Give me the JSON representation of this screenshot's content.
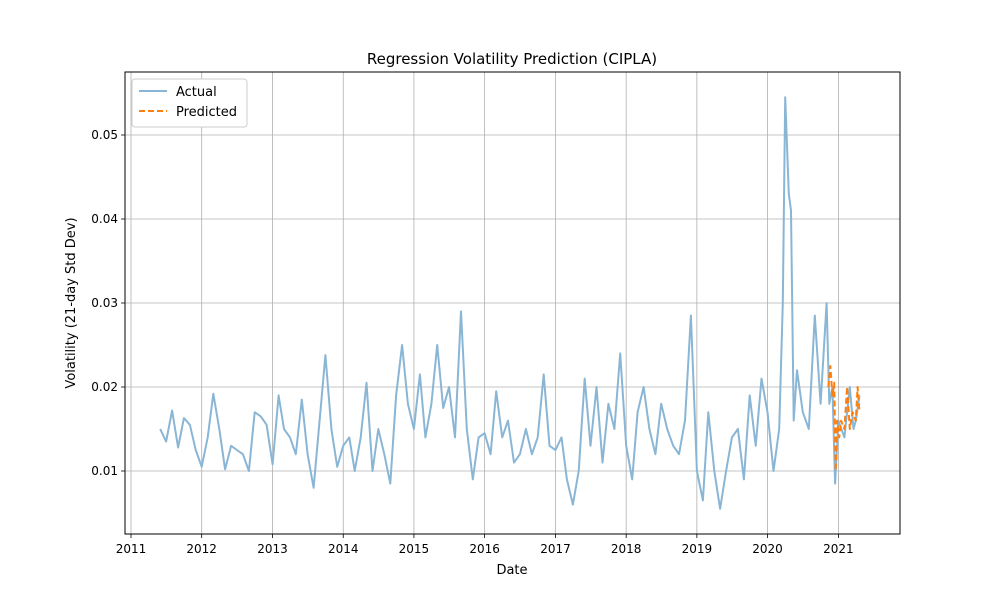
{
  "chart_data": {
    "type": "line",
    "title": "Regression Volatility Prediction (CIPLA)",
    "xlabel": "Date",
    "ylabel": "Volatility (21-day Std Dev)",
    "x_ticks": [
      "2011",
      "2012",
      "2013",
      "2014",
      "2015",
      "2016",
      "2017",
      "2018",
      "2019",
      "2020",
      "2021"
    ],
    "y_ticks": [
      "0.01",
      "0.02",
      "0.03",
      "0.04",
      "0.05"
    ],
    "xlim": [
      "2010-12-01",
      "2021-11-15"
    ],
    "ylim": [
      0.0025,
      0.0575
    ],
    "grid": true,
    "legend_position": "top-left",
    "colors": {
      "actual": "#8ab6d6",
      "predicted": "#ff7f0e"
    },
    "series": [
      {
        "name": "Actual",
        "style": "solid",
        "points": [
          [
            "2011-06-01",
            0.015
          ],
          [
            "2011-07-01",
            0.0135
          ],
          [
            "2011-08-01",
            0.0172
          ],
          [
            "2011-09-01",
            0.0128
          ],
          [
            "2011-10-01",
            0.0163
          ],
          [
            "2011-11-01",
            0.0155
          ],
          [
            "2011-12-01",
            0.0125
          ],
          [
            "2012-01-01",
            0.0105
          ],
          [
            "2012-02-01",
            0.014
          ],
          [
            "2012-03-01",
            0.0192
          ],
          [
            "2012-04-01",
            0.015
          ],
          [
            "2012-05-01",
            0.0102
          ],
          [
            "2012-06-01",
            0.013
          ],
          [
            "2012-07-01",
            0.0125
          ],
          [
            "2012-08-01",
            0.012
          ],
          [
            "2012-09-01",
            0.01
          ],
          [
            "2012-10-01",
            0.017
          ],
          [
            "2012-11-01",
            0.0165
          ],
          [
            "2012-12-01",
            0.0155
          ],
          [
            "2013-01-01",
            0.0108
          ],
          [
            "2013-02-01",
            0.019
          ],
          [
            "2013-03-01",
            0.015
          ],
          [
            "2013-04-01",
            0.014
          ],
          [
            "2013-05-01",
            0.012
          ],
          [
            "2013-06-01",
            0.0185
          ],
          [
            "2013-07-01",
            0.012
          ],
          [
            "2013-08-01",
            0.008
          ],
          [
            "2013-09-01",
            0.016
          ],
          [
            "2013-10-01",
            0.0238
          ],
          [
            "2013-11-01",
            0.015
          ],
          [
            "2013-12-01",
            0.0105
          ],
          [
            "2014-01-01",
            0.013
          ],
          [
            "2014-02-01",
            0.014
          ],
          [
            "2014-03-01",
            0.01
          ],
          [
            "2014-04-01",
            0.014
          ],
          [
            "2014-05-01",
            0.0205
          ],
          [
            "2014-06-01",
            0.01
          ],
          [
            "2014-07-01",
            0.015
          ],
          [
            "2014-08-01",
            0.012
          ],
          [
            "2014-09-01",
            0.0085
          ],
          [
            "2014-10-01",
            0.019
          ],
          [
            "2014-11-01",
            0.025
          ],
          [
            "2014-12-01",
            0.018
          ],
          [
            "2015-01-01",
            0.015
          ],
          [
            "2015-02-01",
            0.0215
          ],
          [
            "2015-03-01",
            0.014
          ],
          [
            "2015-04-01",
            0.018
          ],
          [
            "2015-05-01",
            0.025
          ],
          [
            "2015-06-01",
            0.0175
          ],
          [
            "2015-07-01",
            0.02
          ],
          [
            "2015-08-01",
            0.014
          ],
          [
            "2015-09-01",
            0.029
          ],
          [
            "2015-10-01",
            0.015
          ],
          [
            "2015-11-01",
            0.009
          ],
          [
            "2015-12-01",
            0.014
          ],
          [
            "2016-01-01",
            0.0145
          ],
          [
            "2016-02-01",
            0.012
          ],
          [
            "2016-03-01",
            0.0195
          ],
          [
            "2016-04-01",
            0.014
          ],
          [
            "2016-05-01",
            0.016
          ],
          [
            "2016-06-01",
            0.011
          ],
          [
            "2016-07-01",
            0.012
          ],
          [
            "2016-08-01",
            0.015
          ],
          [
            "2016-09-01",
            0.012
          ],
          [
            "2016-10-01",
            0.014
          ],
          [
            "2016-11-01",
            0.0215
          ],
          [
            "2016-12-01",
            0.013
          ],
          [
            "2017-01-01",
            0.0125
          ],
          [
            "2017-02-01",
            0.014
          ],
          [
            "2017-03-01",
            0.009
          ],
          [
            "2017-04-01",
            0.006
          ],
          [
            "2017-05-01",
            0.01
          ],
          [
            "2017-06-01",
            0.021
          ],
          [
            "2017-07-01",
            0.013
          ],
          [
            "2017-08-01",
            0.02
          ],
          [
            "2017-09-01",
            0.011
          ],
          [
            "2017-10-01",
            0.018
          ],
          [
            "2017-11-01",
            0.015
          ],
          [
            "2017-12-01",
            0.024
          ],
          [
            "2018-01-01",
            0.013
          ],
          [
            "2018-02-01",
            0.009
          ],
          [
            "2018-03-01",
            0.017
          ],
          [
            "2018-04-01",
            0.02
          ],
          [
            "2018-05-01",
            0.015
          ],
          [
            "2018-06-01",
            0.012
          ],
          [
            "2018-07-01",
            0.018
          ],
          [
            "2018-08-01",
            0.015
          ],
          [
            "2018-09-01",
            0.013
          ],
          [
            "2018-10-01",
            0.012
          ],
          [
            "2018-11-01",
            0.016
          ],
          [
            "2018-12-01",
            0.0285
          ],
          [
            "2019-01-01",
            0.01
          ],
          [
            "2019-02-01",
            0.0065
          ],
          [
            "2019-03-01",
            0.017
          ],
          [
            "2019-04-01",
            0.01
          ],
          [
            "2019-05-01",
            0.0055
          ],
          [
            "2019-06-01",
            0.01
          ],
          [
            "2019-07-01",
            0.014
          ],
          [
            "2019-08-01",
            0.015
          ],
          [
            "2019-09-01",
            0.009
          ],
          [
            "2019-10-01",
            0.019
          ],
          [
            "2019-11-01",
            0.013
          ],
          [
            "2019-12-01",
            0.021
          ],
          [
            "2020-01-01",
            0.017
          ],
          [
            "2020-02-01",
            0.01
          ],
          [
            "2020-03-01",
            0.015
          ],
          [
            "2020-03-20",
            0.03
          ],
          [
            "2020-04-01",
            0.0545
          ],
          [
            "2020-04-20",
            0.043
          ],
          [
            "2020-05-01",
            0.041
          ],
          [
            "2020-05-15",
            0.016
          ],
          [
            "2020-06-01",
            0.022
          ],
          [
            "2020-07-01",
            0.017
          ],
          [
            "2020-08-01",
            0.015
          ],
          [
            "2020-09-01",
            0.0285
          ],
          [
            "2020-10-01",
            0.018
          ],
          [
            "2020-11-01",
            0.03
          ],
          [
            "2020-11-15",
            0.018
          ],
          [
            "2020-12-01",
            0.02
          ],
          [
            "2020-12-15",
            0.0085
          ],
          [
            "2021-01-01",
            0.016
          ],
          [
            "2021-02-01",
            0.014
          ],
          [
            "2021-03-01",
            0.02
          ],
          [
            "2021-03-20",
            0.015
          ],
          [
            "2021-04-01",
            0.016
          ],
          [
            "2021-04-20",
            0.019
          ]
        ]
      },
      {
        "name": "Predicted",
        "style": "dashed",
        "points": [
          [
            "2020-11-10",
            0.02
          ],
          [
            "2020-11-20",
            0.0225
          ],
          [
            "2020-12-01",
            0.019
          ],
          [
            "2020-12-10",
            0.0205
          ],
          [
            "2020-12-18",
            0.01
          ],
          [
            "2020-12-25",
            0.016
          ],
          [
            "2021-01-05",
            0.014
          ],
          [
            "2021-01-15",
            0.016
          ],
          [
            "2021-02-01",
            0.015
          ],
          [
            "2021-02-15",
            0.02
          ],
          [
            "2021-03-01",
            0.015
          ],
          [
            "2021-03-15",
            0.017
          ],
          [
            "2021-04-01",
            0.016
          ],
          [
            "2021-04-10",
            0.02
          ],
          [
            "2021-04-20",
            0.017
          ]
        ]
      }
    ]
  }
}
